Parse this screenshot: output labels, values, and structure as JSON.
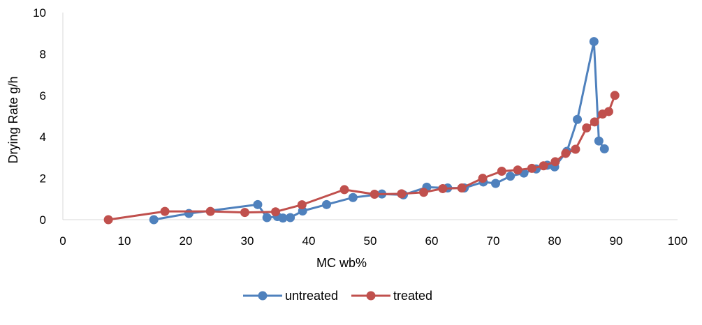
{
  "chart_data": {
    "type": "line",
    "title": "",
    "xlabel": "MC wb%",
    "ylabel": "Drying  Rate g/h",
    "xlim": [
      0,
      100
    ],
    "ylim": [
      0,
      10
    ],
    "x_ticks": [
      0,
      10,
      20,
      30,
      40,
      50,
      60,
      70,
      80,
      90,
      100
    ],
    "y_ticks": [
      0,
      2,
      4,
      6,
      8,
      10
    ],
    "grid": false,
    "legend": "bottom",
    "series": [
      {
        "name": "untreated",
        "color": "#4F81BD",
        "points": [
          [
            14.8,
            0.0
          ],
          [
            20.5,
            0.3
          ],
          [
            31.7,
            0.73
          ],
          [
            33.2,
            0.1
          ],
          [
            34.9,
            0.15
          ],
          [
            35.8,
            0.08
          ],
          [
            37.0,
            0.1
          ],
          [
            39.0,
            0.42
          ],
          [
            42.9,
            0.73
          ],
          [
            47.2,
            1.07
          ],
          [
            51.9,
            1.24
          ],
          [
            55.4,
            1.2
          ],
          [
            59.2,
            1.57
          ],
          [
            62.6,
            1.53
          ],
          [
            65.3,
            1.53
          ],
          [
            68.4,
            1.82
          ],
          [
            70.4,
            1.75
          ],
          [
            72.8,
            2.1
          ],
          [
            75.0,
            2.25
          ],
          [
            77.0,
            2.45
          ],
          [
            78.8,
            2.63
          ],
          [
            80.0,
            2.55
          ],
          [
            82.0,
            3.3
          ],
          [
            83.7,
            4.84
          ],
          [
            86.4,
            8.6
          ],
          [
            87.2,
            3.8
          ],
          [
            88.1,
            3.42
          ]
        ]
      },
      {
        "name": "treated",
        "color": "#C0504D",
        "points": [
          [
            7.4,
            0.0
          ],
          [
            16.6,
            0.4
          ],
          [
            24.0,
            0.4
          ],
          [
            29.6,
            0.35
          ],
          [
            34.6,
            0.38
          ],
          [
            38.9,
            0.72
          ],
          [
            45.8,
            1.45
          ],
          [
            50.7,
            1.23
          ],
          [
            55.1,
            1.25
          ],
          [
            58.7,
            1.32
          ],
          [
            61.8,
            1.5
          ],
          [
            64.9,
            1.53
          ],
          [
            68.3,
            2.0
          ],
          [
            71.4,
            2.34
          ],
          [
            74.0,
            2.4
          ],
          [
            76.3,
            2.48
          ],
          [
            78.2,
            2.6
          ],
          [
            80.1,
            2.8
          ],
          [
            81.8,
            3.2
          ],
          [
            83.4,
            3.4
          ],
          [
            85.2,
            4.43
          ],
          [
            86.5,
            4.72
          ],
          [
            87.8,
            5.1
          ],
          [
            88.8,
            5.22
          ],
          [
            89.8,
            6.0
          ]
        ]
      }
    ]
  }
}
